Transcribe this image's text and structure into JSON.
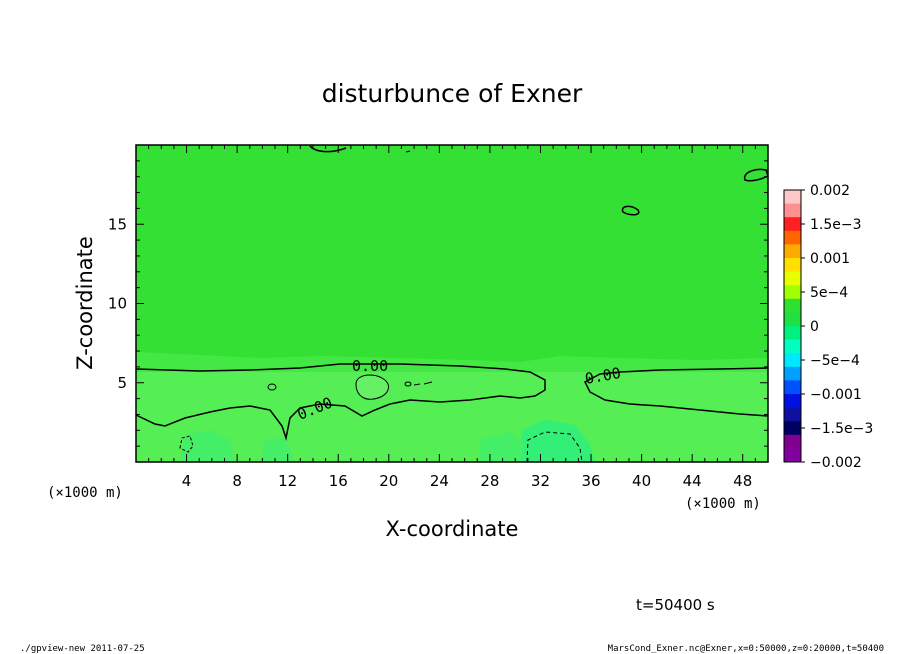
{
  "chart_data": {
    "type": "heatmap",
    "title": "disturbunce of Exner",
    "xlabel": "X-coordinate",
    "ylabel": "Z-coordinate",
    "x_unit": "(×1000 m)",
    "xlim": [
      0,
      50
    ],
    "ylim": [
      0,
      20
    ],
    "x_ticks": [
      "4",
      "8",
      "12",
      "16",
      "20",
      "24",
      "28",
      "32",
      "36",
      "40",
      "44",
      "48"
    ],
    "y_ticks": [
      "5",
      "10",
      "15"
    ],
    "contour_labels": [
      "0.00",
      "0.00",
      "0.00"
    ],
    "colorbar": {
      "labels": [
        "0.002",
        "1.5e−3",
        "0.001",
        "5e−4",
        "0",
        "−5e−4",
        "−0.001",
        "−1.5e−3",
        "−0.002"
      ],
      "colors": [
        "#ffc8c8",
        "#ff9090",
        "#ff2020",
        "#ff6600",
        "#ffaa00",
        "#ffe000",
        "#e8ff00",
        "#a0ff00",
        "#30e030",
        "#20e040",
        "#00f080",
        "#00ffc0",
        "#00e8ff",
        "#00a0ff",
        "#0050ff",
        "#0010e0",
        "#1010a0",
        "#000060",
        "#800090",
        "#8000a0"
      ]
    },
    "time": "t=50400 s",
    "footer_left": "./gpview-new  2011-07-25",
    "footer_right": "MarsCond_Exner.nc@Exner,x=0:50000,z=0:20000,t=50400"
  }
}
